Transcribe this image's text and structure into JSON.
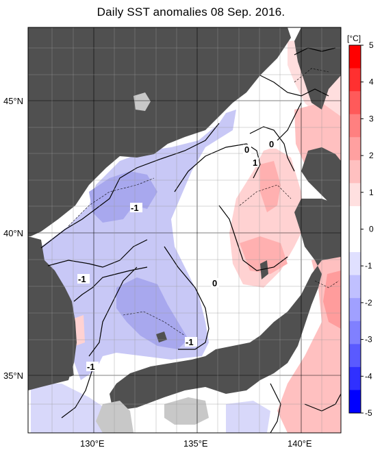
{
  "title": "Daily SST anomalies 08 Sep. 2016.",
  "axes": {
    "lat_labels": [
      "45°N",
      "40°N",
      "35°N"
    ],
    "lon_labels": [
      "130°E",
      "135°E",
      "140°E"
    ]
  },
  "contour_labels": [
    "0",
    "0",
    "1",
    "-1",
    "-1",
    "0",
    "-1",
    "-1"
  ],
  "colorbar": {
    "unit": "[°C]",
    "ticks": [
      "5",
      "4",
      "3",
      "2",
      "1",
      "0",
      "-1",
      "-2",
      "-3",
      "-4",
      "-5"
    ],
    "colors": [
      "#ff0000",
      "#ff3030",
      "#ff5a5a",
      "#ff8080",
      "#ffa0a0",
      "#ffc0c0",
      "#ffe0e0",
      "#ffffff",
      "#ffffff",
      "#e0e0ff",
      "#c0c0ff",
      "#a0a0ff",
      "#8080ff",
      "#5a5aff",
      "#3030ff",
      "#0000ff"
    ]
  },
  "colors": {
    "land": "#505050",
    "land_light": "#c8c8c8",
    "warm": "#ffc8c8",
    "cold": "#b8b8f2"
  }
}
